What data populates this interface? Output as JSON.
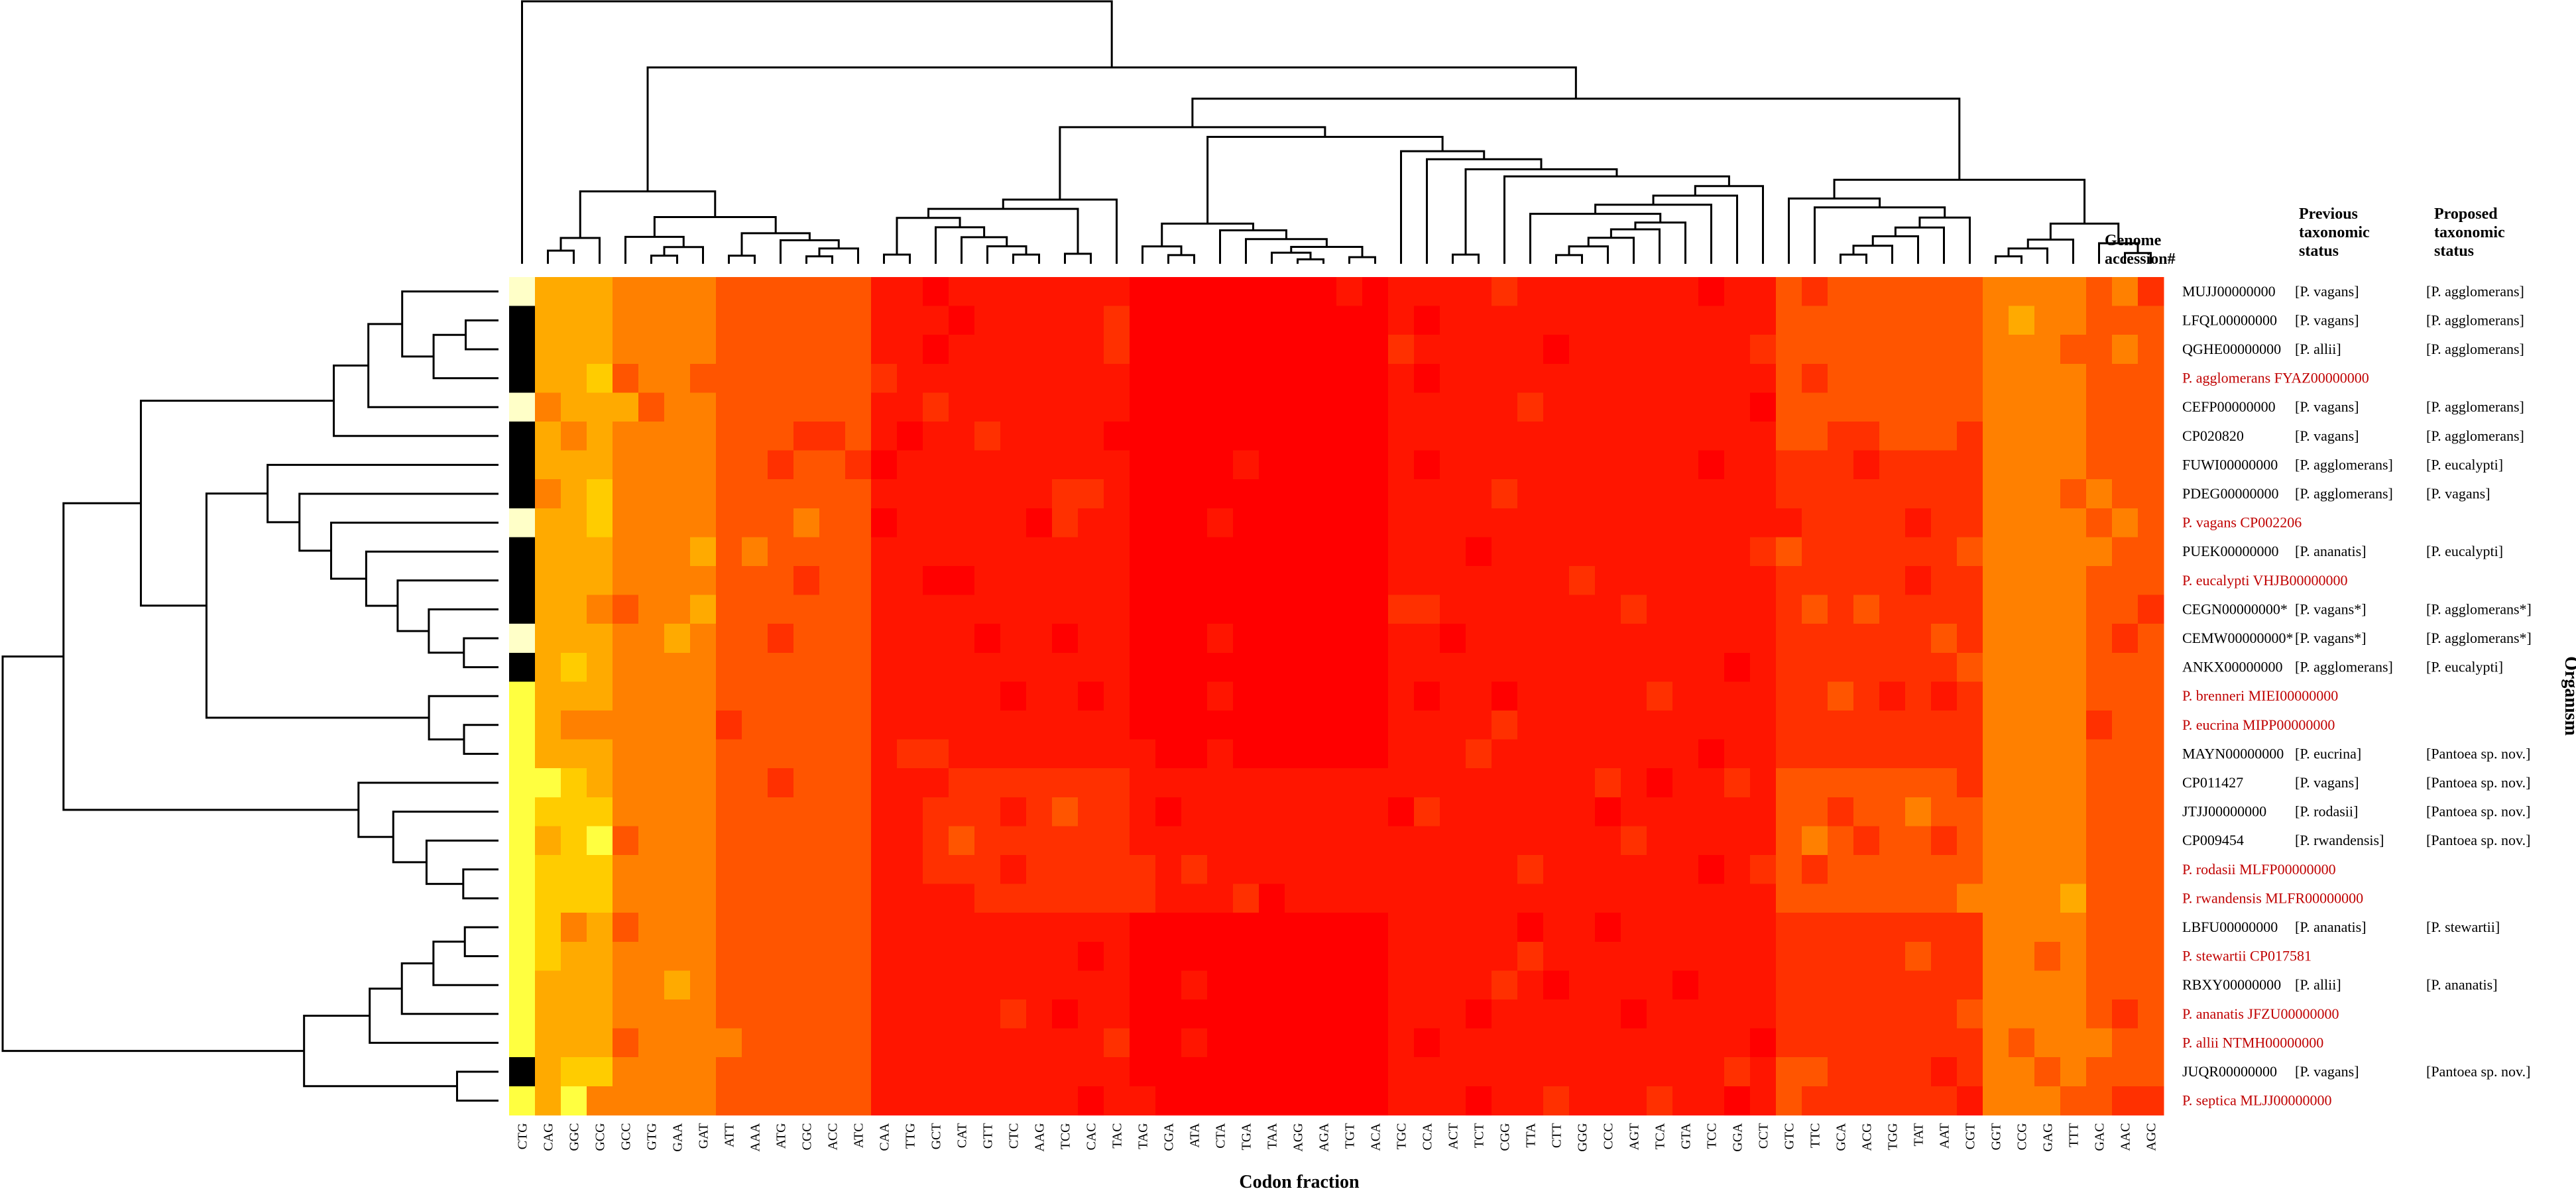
{
  "chart_data": {
    "type": "heatmap",
    "xlabel": "Codon fraction",
    "ylabel": "Organism",
    "headers": {
      "accession": [
        "Genome",
        "accession#"
      ],
      "previous": [
        "Previous",
        "taxonomic",
        "status"
      ],
      "proposed": [
        "Proposed",
        "taxonomic",
        "status"
      ]
    },
    "colors": {
      "palette": [
        "#ffffc8",
        "#ffff40",
        "#ffcc00",
        "#ffaa00",
        "#ff8000",
        "#ff5500",
        "#ff3000",
        "#ff1500",
        "#ff0000"
      ],
      "reference_text": "#c00000",
      "other_text": "#000000"
    },
    "columns": [
      "CTG",
      "CAG",
      "GGC",
      "GCG",
      "GCC",
      "GTG",
      "GAA",
      "GAT",
      "ATT",
      "AAA",
      "ATG",
      "CGC",
      "ACC",
      "ATC",
      "CAA",
      "TTG",
      "GCT",
      "CAT",
      "GTT",
      "CTC",
      "AAG",
      "TCG",
      "CAC",
      "TAC",
      "TAG",
      "CGA",
      "ATA",
      "CTA",
      "TGA",
      "TAA",
      "AGG",
      "AGA",
      "TGT",
      "ACA",
      "TGC",
      "CCA",
      "ACT",
      "TCT",
      "CGG",
      "TTA",
      "CTT",
      "GGG",
      "CCC",
      "AGT",
      "TCA",
      "GTA",
      "TCC",
      "GGA",
      "CCT",
      "GTC",
      "TTC",
      "GCA",
      "ACG",
      "TGG",
      "TAT",
      "AAT",
      "CGT",
      "GGT",
      "CCG",
      "GAG",
      "TTT",
      "GAC",
      "AAC",
      "AGC"
    ],
    "column_groups": [
      "a",
      "a",
      "a",
      "a",
      "b",
      "b",
      "b",
      "b",
      "c",
      "c",
      "c",
      "c",
      "c",
      "c",
      "d",
      "d",
      "e",
      "e",
      "e",
      "e",
      "e",
      "e",
      "e",
      "e",
      "f",
      "f",
      "f",
      "f",
      "f",
      "f",
      "f",
      "f",
      "f",
      "f",
      "g",
      "g",
      "g",
      "g",
      "g",
      "g",
      "g",
      "g",
      "g",
      "g",
      "g",
      "g",
      "g",
      "g",
      "g",
      "h",
      "h",
      "h",
      "h",
      "h",
      "h",
      "h",
      "h",
      "i",
      "i",
      "i",
      "i",
      "j",
      "j",
      "j"
    ],
    "rows": [
      {
        "accession": "MUJJ00000000",
        "reference": false,
        "previous": "[P. vagans]",
        "proposed": "[P. agglomerans]",
        "cluster": 1
      },
      {
        "accession": "LFQL00000000",
        "reference": false,
        "previous": "[P. vagans]",
        "proposed": "[P. agglomerans]",
        "cluster": 1
      },
      {
        "accession": "QGHE00000000",
        "reference": false,
        "previous": "[P. allii]",
        "proposed": "[P. agglomerans]",
        "cluster": 1
      },
      {
        "accession": "P. agglomerans FYAZ00000000",
        "reference": true,
        "previous": "",
        "proposed": "",
        "cluster": 1
      },
      {
        "accession": "CEFP00000000",
        "reference": false,
        "previous": "[P. vagans]",
        "proposed": "[P. agglomerans]",
        "cluster": 1
      },
      {
        "accession": "CP020820",
        "reference": false,
        "previous": "[P. vagans]",
        "proposed": "[P. agglomerans]",
        "cluster": 1
      },
      {
        "accession": "FUWI00000000",
        "reference": false,
        "previous": "[P. agglomerans]",
        "proposed": "[P. eucalypti]",
        "cluster": 2
      },
      {
        "accession": "PDEG00000000",
        "reference": false,
        "previous": "[P. agglomerans]",
        "proposed": "[P. vagans]",
        "cluster": 2
      },
      {
        "accession": "P. vagans CP002206",
        "reference": true,
        "previous": "",
        "proposed": "",
        "cluster": 2
      },
      {
        "accession": "PUEK00000000",
        "reference": false,
        "previous": "[P. ananatis]",
        "proposed": "[P. eucalypti]",
        "cluster": 2
      },
      {
        "accession": "P. eucalypti VHJB00000000",
        "reference": true,
        "previous": "",
        "proposed": "",
        "cluster": 2
      },
      {
        "accession": "CEGN00000000*",
        "reference": false,
        "previous": "[P. vagans*]",
        "proposed": "[P. agglomerans*]",
        "cluster": 2
      },
      {
        "accession": "CEMW00000000*",
        "reference": false,
        "previous": "[P. vagans*]",
        "proposed": "[P. agglomerans*]",
        "cluster": 2
      },
      {
        "accession": "ANKX00000000",
        "reference": false,
        "previous": "[P. agglomerans]",
        "proposed": "[P. eucalypti]",
        "cluster": 2
      },
      {
        "accession": "P. brenneri MIEI00000000",
        "reference": true,
        "previous": "",
        "proposed": "",
        "cluster": 3
      },
      {
        "accession": "P. eucrina MIPP00000000",
        "reference": true,
        "previous": "",
        "proposed": "",
        "cluster": 3
      },
      {
        "accession": "MAYN00000000",
        "reference": false,
        "previous": "[P. eucrina]",
        "proposed": "[Pantoea sp. nov.]",
        "cluster": 3
      },
      {
        "accession": "CP011427",
        "reference": false,
        "previous": "[P. vagans]",
        "proposed": "[Pantoea sp. nov.]",
        "cluster": 4
      },
      {
        "accession": "JTJJ00000000",
        "reference": false,
        "previous": "[P. rodasii]",
        "proposed": "[Pantoea sp. nov.]",
        "cluster": 4
      },
      {
        "accession": "CP009454",
        "reference": false,
        "previous": "[P. rwandensis]",
        "proposed": "[Pantoea sp. nov.]",
        "cluster": 4
      },
      {
        "accession": "P. rodasii MLFP00000000",
        "reference": true,
        "previous": "",
        "proposed": "",
        "cluster": 4
      },
      {
        "accession": "P. rwandensis MLFR00000000",
        "reference": true,
        "previous": "",
        "proposed": "",
        "cluster": 4
      },
      {
        "accession": "LBFU00000000",
        "reference": false,
        "previous": "[P. ananatis]",
        "proposed": "[P. stewartii]",
        "cluster": 5
      },
      {
        "accession": "P. stewartii CP017581",
        "reference": true,
        "previous": "",
        "proposed": "",
        "cluster": 5
      },
      {
        "accession": "RBXY00000000",
        "reference": false,
        "previous": "[P. allii]",
        "proposed": "[P. ananatis]",
        "cluster": 5
      },
      {
        "accession": "P. ananatis JFZU00000000",
        "reference": true,
        "previous": "",
        "proposed": "",
        "cluster": 5
      },
      {
        "accession": "P. allii NTMH00000000",
        "reference": true,
        "previous": "",
        "proposed": "",
        "cluster": 5
      },
      {
        "accession": "JUQR00000000",
        "reference": false,
        "previous": "[P. vagans]",
        "proposed": "[Pantoea sp. nov.]",
        "cluster": 6
      },
      {
        "accession": "P. septica MLJJ00000000",
        "reference": true,
        "previous": "",
        "proposed": "",
        "cluster": 6
      }
    ]
  }
}
